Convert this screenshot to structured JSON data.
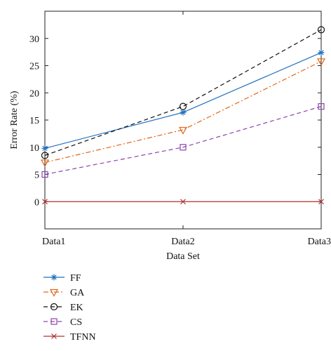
{
  "chart_data": {
    "type": "line",
    "xlabel": "Data Set",
    "ylabel": "Error Rate (%)",
    "categories": [
      "Data1",
      "Data2",
      "Data3"
    ],
    "ylim": [
      -5,
      35
    ],
    "yticks": [
      0,
      5,
      10,
      15,
      20,
      25,
      30
    ],
    "grid": false,
    "legend_position": "bottom-left",
    "series": [
      {
        "name": "FF",
        "values": [
          9.8,
          16.4,
          27.4
        ],
        "color": "#1f6fbf",
        "dash": "solid",
        "marker": "asterisk"
      },
      {
        "name": "GA",
        "values": [
          7.2,
          13.2,
          25.8
        ],
        "color": "#e0661a",
        "dash": "dashdot",
        "marker": "triangle-down"
      },
      {
        "name": "EK",
        "values": [
          8.5,
          17.5,
          31.6
        ],
        "color": "#111111",
        "dash": "dashed",
        "marker": "circle"
      },
      {
        "name": "CS",
        "values": [
          5.0,
          10.0,
          17.5
        ],
        "color": "#8e44ad",
        "dash": "dashed",
        "marker": "square"
      },
      {
        "name": "TFNN",
        "values": [
          0,
          0,
          0
        ],
        "color": "#b03030",
        "dash": "solid",
        "marker": "x"
      }
    ]
  }
}
